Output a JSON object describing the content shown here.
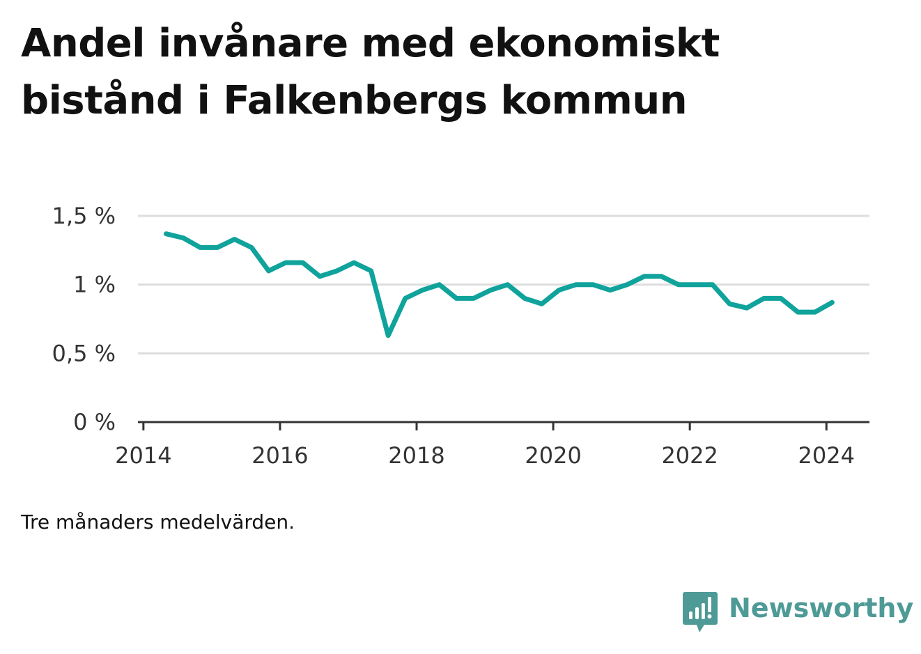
{
  "title_lines": [
    "Andel invånare med ekonomiskt",
    "bistånd i Falkenbergs kommun"
  ],
  "note": "Tre månaders medelvärden.",
  "brand": {
    "name": "Newsworthy",
    "icon": "newsworthy-logo-icon",
    "color": "#4e9a96"
  },
  "colors": {
    "line": "#0fa39c",
    "grid": "#dddddd",
    "axis": "#333333"
  },
  "chart_data": {
    "type": "line",
    "title": "Andel invånare med ekonomiskt bistånd i Falkenbergs kommun",
    "xlabel": "",
    "ylabel": "",
    "xlim": [
      2013.92,
      2024.63
    ],
    "ylim": [
      0,
      1.5
    ],
    "x_ticks": [
      2014,
      2016,
      2018,
      2020,
      2022,
      2024
    ],
    "x_tick_labels": [
      "2014",
      "2016",
      "2018",
      "2020",
      "2022",
      "2024"
    ],
    "y_ticks": [
      0,
      0.5,
      1,
      1.5
    ],
    "y_tick_labels": [
      "0 %",
      "0,5 %",
      "1 %",
      "1,5 %"
    ],
    "grid": "horizontal",
    "legend": "none",
    "series": [
      {
        "x": [
          "2014-05",
          "2014-08",
          "2014-11",
          "2015-02",
          "2015-05",
          "2015-08",
          "2015-11",
          "2016-02",
          "2016-05",
          "2016-08",
          "2016-11",
          "2017-02",
          "2017-05",
          "2017-08",
          "2017-11",
          "2018-02",
          "2018-05",
          "2018-08",
          "2018-11",
          "2019-02",
          "2019-05",
          "2019-08",
          "2019-11",
          "2020-02",
          "2020-05",
          "2020-08",
          "2020-11",
          "2021-02",
          "2021-05",
          "2021-08",
          "2021-11",
          "2022-02",
          "2022-05",
          "2022-08",
          "2022-11",
          "2023-02",
          "2023-05",
          "2023-08",
          "2023-11",
          "2024-02"
        ],
        "values": [
          1.37,
          1.34,
          1.27,
          1.27,
          1.33,
          1.27,
          1.1,
          1.16,
          1.16,
          1.06,
          1.1,
          1.16,
          1.1,
          0.63,
          0.9,
          0.96,
          1.0,
          0.9,
          0.9,
          0.96,
          1.0,
          0.9,
          0.86,
          0.96,
          1.0,
          1.0,
          0.96,
          1.0,
          1.06,
          1.06,
          1.0,
          1.0,
          1.0,
          0.86,
          0.83,
          0.9,
          0.9,
          0.8,
          0.8,
          0.87
        ]
      }
    ]
  }
}
